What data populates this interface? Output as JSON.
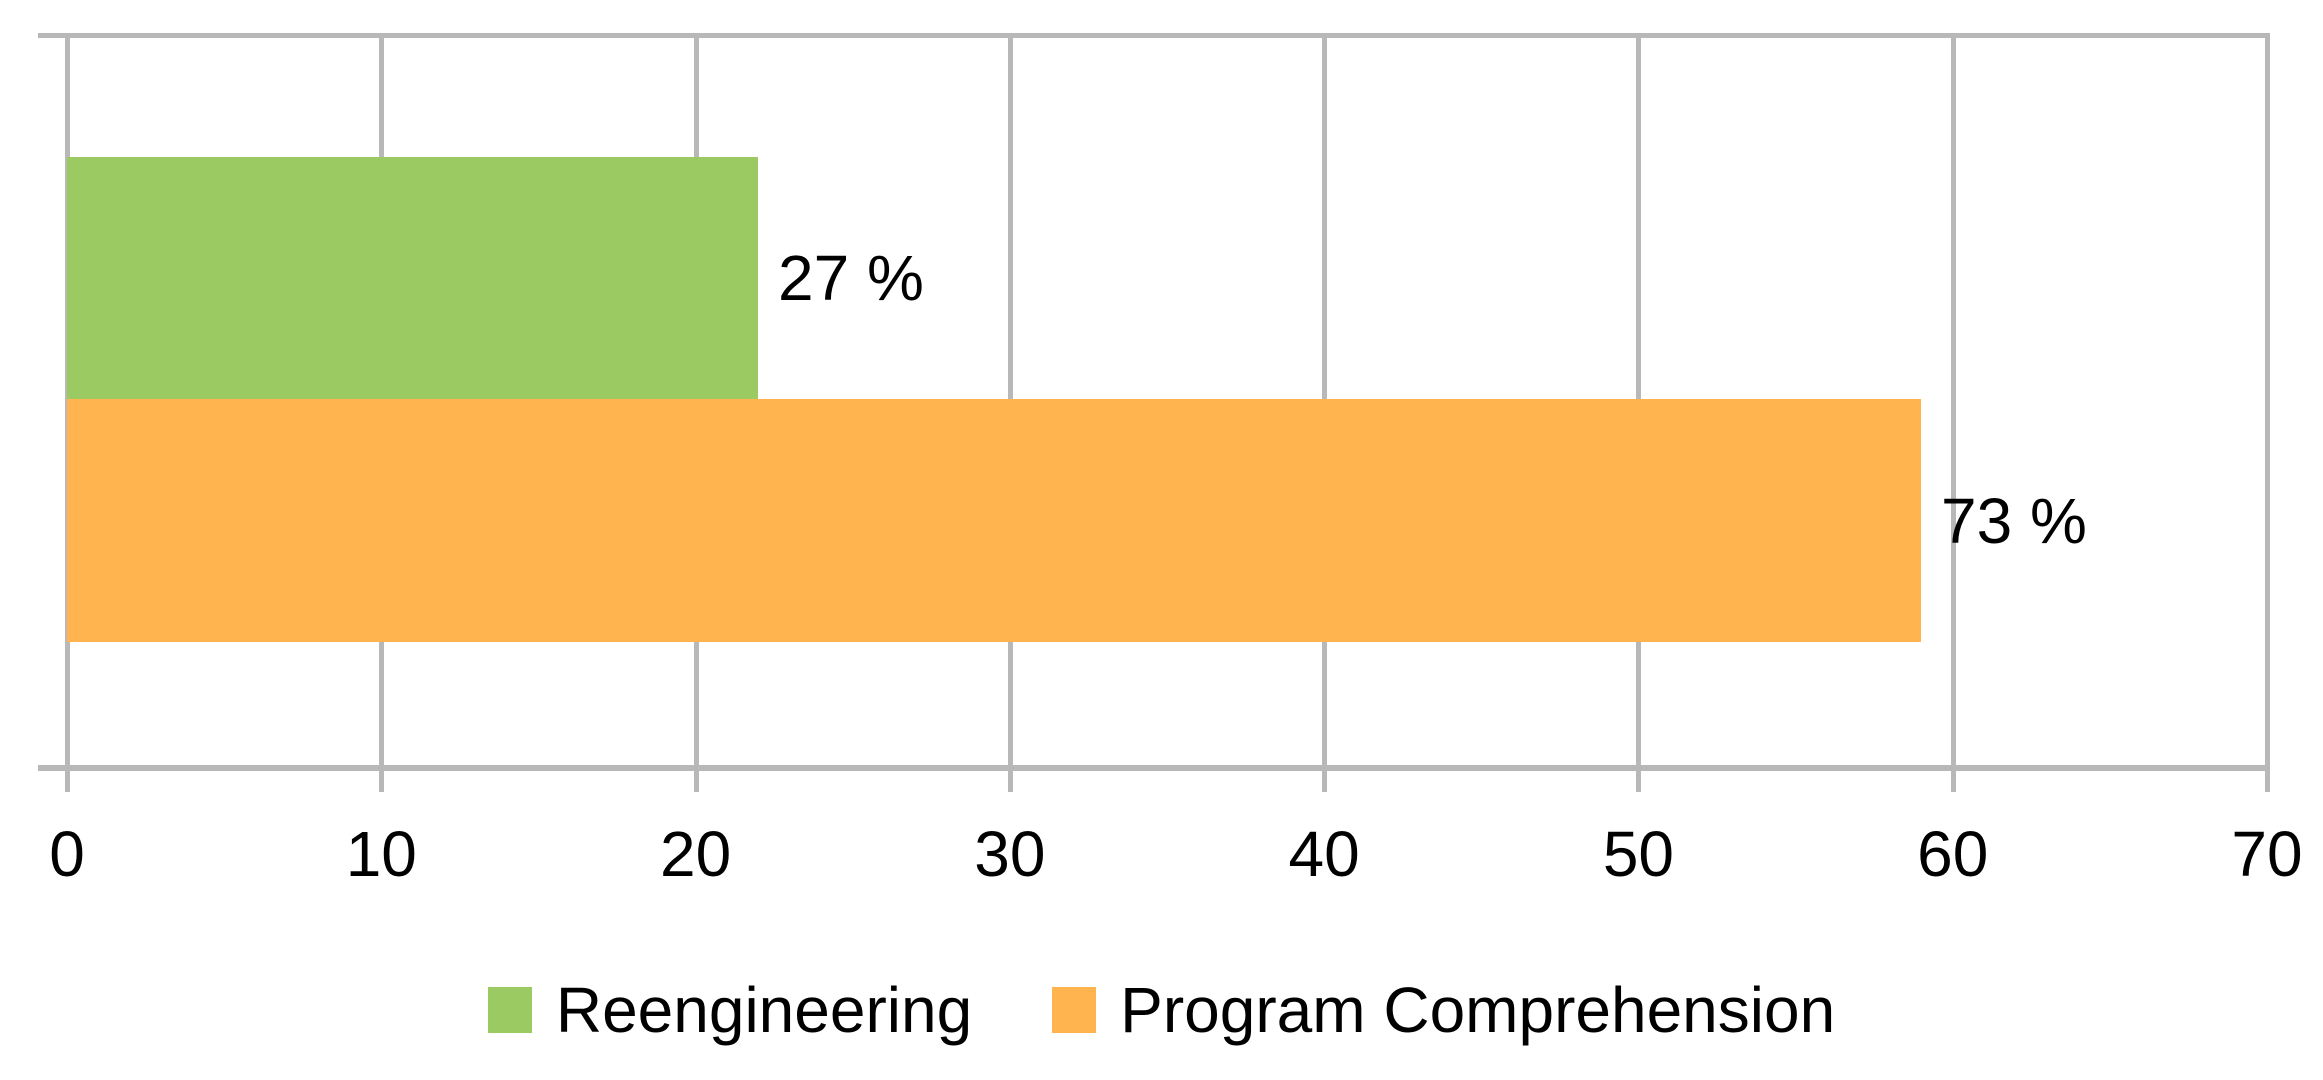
{
  "chart_data": {
    "type": "bar",
    "orientation": "horizontal",
    "title": "",
    "xlabel": "",
    "ylabel": "",
    "series": [
      {
        "name": "Reengineering",
        "value": 22,
        "data_label": "27 %",
        "color": "#9bca63"
      },
      {
        "name": "Program Comprehension",
        "value": 59,
        "data_label": "73 %",
        "color": "#ffb44f"
      }
    ],
    "x_axis": {
      "min": 0,
      "max": 70,
      "tick_step": 10,
      "tick_labels": [
        "0",
        "10",
        "20",
        "30",
        "40",
        "50",
        "60",
        "70"
      ]
    },
    "grid": "vertical-gridlines-on",
    "legend": {
      "position": "bottom",
      "entries": [
        "Reengineering",
        "Program Comprehension"
      ]
    },
    "colors": {
      "gridline": "#b8b8b8",
      "axis_line": "#b8b8b8",
      "label_text": "#000000",
      "background": "#ffffff"
    }
  }
}
